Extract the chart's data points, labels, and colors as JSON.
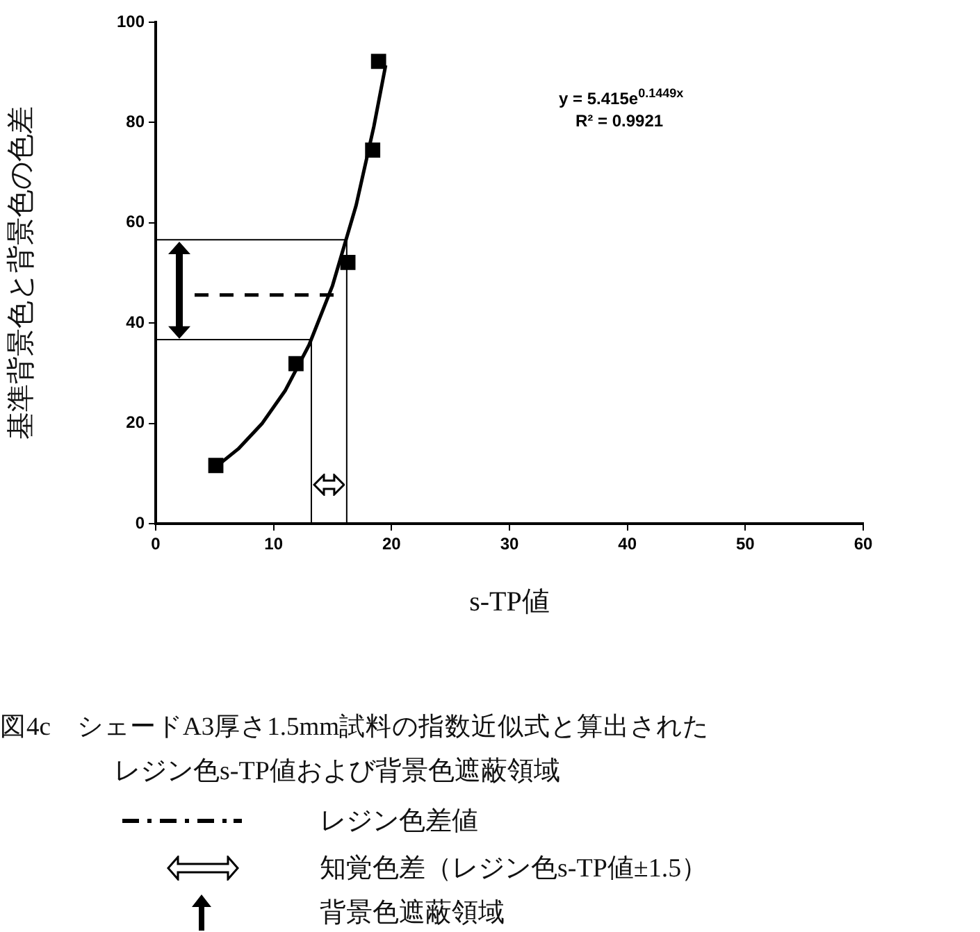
{
  "chart_data": {
    "type": "scatter",
    "xlabel": "s-TP値",
    "ylabel": "基準背景色と背景色の色差",
    "xlim": [
      0,
      60
    ],
    "xticks": [
      0,
      10,
      20,
      30,
      40,
      50,
      60
    ],
    "ylim": [
      0,
      100
    ],
    "yticks": [
      0,
      20,
      40,
      60,
      80,
      100
    ],
    "grid": false,
    "legend": false,
    "marker": "square",
    "series": [
      {
        "type": "scatter",
        "color": "#000000",
        "x": [
          5.1,
          11.9,
          16.3,
          18.4,
          18.9
        ],
        "values": [
          11.6,
          31.9,
          52.1,
          74.5,
          92.2
        ]
      },
      {
        "type": "line",
        "color": "#000000",
        "marker": "none",
        "x": [
          5.1,
          7,
          9,
          11,
          13,
          15,
          17,
          18.5,
          19.5
        ],
        "values": [
          11.3,
          14.9,
          19.9,
          26.6,
          35.6,
          47.5,
          63.5,
          79.2,
          91.4
        ]
      },
      {
        "type": "line",
        "color": "#000000",
        "marker": "none",
        "line_style": "dashed",
        "x": [
          3.3,
          16
        ],
        "values": [
          45.6,
          45.6
        ]
      },
      {
        "type": "line",
        "color": "#000000",
        "marker": "none",
        "x": [
          0,
          16.2,
          16.2
        ],
        "values": [
          56.6,
          56.6,
          0
        ]
      },
      {
        "type": "line",
        "color": "#000000",
        "marker": "none",
        "x": [
          0,
          13.2,
          13.2
        ],
        "values": [
          36.7,
          36.7,
          0
        ]
      }
    ],
    "annotations": [
      "y = 5.415e$^{0.1449x}$",
      "R² = 0.9921",
      "図4c　シェードA3厚さ1.5mm試料の指数近似式と算出された",
      "レジン色s-TP値および背景色遮蔽領域",
      "レジン色差値",
      "知覚色差（レジン色s-TP値±1.5）",
      "背景色遮蔽領域"
    ]
  }
}
